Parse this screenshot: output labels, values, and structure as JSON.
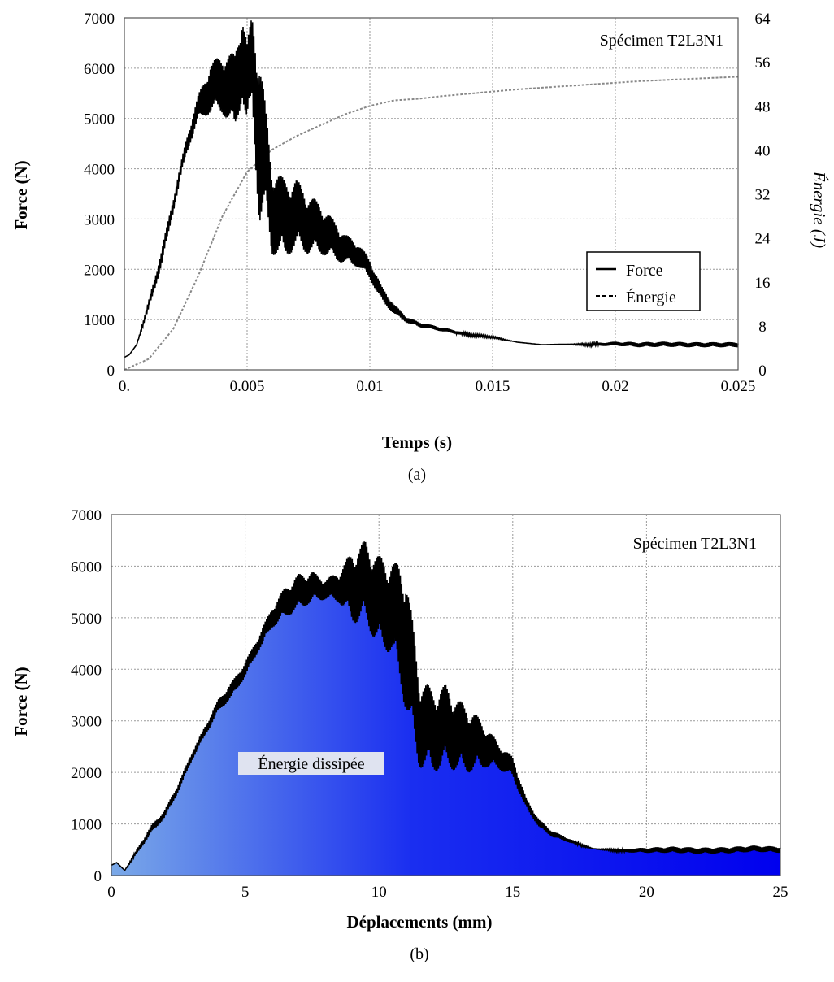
{
  "chart_data": [
    {
      "type": "line",
      "caption": "(a)",
      "annotation": "Spécimen T2L3N1",
      "xlabel": "Temps (s)",
      "ylabel": "Force (N)",
      "ylabel_right": "Énergie (J)",
      "xlim": [
        0,
        0.025
      ],
      "ylim": [
        0,
        7000
      ],
      "ylim_right": [
        0,
        64
      ],
      "grid": true,
      "legend_position": "lower-right",
      "x_ticks": [
        "0.",
        "0.005",
        "0.01",
        "0.015",
        "0.02",
        "0.025"
      ],
      "x_tick_values": [
        0,
        0.005,
        0.01,
        0.015,
        0.02,
        0.025
      ],
      "y_ticks": [
        "0",
        "1000",
        "2000",
        "3000",
        "4000",
        "5000",
        "6000",
        "7000"
      ],
      "y_tick_values": [
        0,
        1000,
        2000,
        3000,
        4000,
        5000,
        6000,
        7000
      ],
      "y_ticks_right": [
        "0",
        "8",
        "16",
        "24",
        "32",
        "40",
        "48",
        "56",
        "64"
      ],
      "y_tick_values_right": [
        0,
        8,
        16,
        24,
        32,
        40,
        48,
        56,
        64
      ],
      "series": [
        {
          "name": "Force",
          "axis": "left",
          "style": "solid",
          "color": "#000000",
          "x": [
            0,
            0.0002,
            0.0005,
            0.001,
            0.0015,
            0.002,
            0.0025,
            0.003,
            0.0035,
            0.004,
            0.0045,
            0.0048,
            0.005,
            0.0052,
            0.0055,
            0.0058,
            0.006,
            0.0065,
            0.007,
            0.0075,
            0.008,
            0.0085,
            0.009,
            0.0095,
            0.01,
            0.0105,
            0.011,
            0.0115,
            0.012,
            0.013,
            0.014,
            0.015,
            0.016,
            0.017,
            0.018,
            0.019,
            0.02,
            0.021,
            0.022,
            0.023,
            0.024,
            0.025
          ],
          "values": [
            250,
            300,
            500,
            1300,
            2200,
            3300,
            4400,
            5200,
            5600,
            5700,
            5500,
            6300,
            5600,
            6200,
            4600,
            4000,
            3200,
            3000,
            3100,
            2900,
            2800,
            2600,
            2400,
            2300,
            2000,
            1500,
            1200,
            1000,
            900,
            800,
            700,
            650,
            550,
            500,
            510,
            500,
            520,
            500,
            510,
            500,
            500,
            500
          ],
          "oscillation_amplitude": [
            0,
            0,
            0,
            100,
            150,
            150,
            150,
            250,
            500,
            600,
            800,
            900,
            900,
            900,
            1800,
            1000,
            900,
            800,
            700,
            600,
            500,
            400,
            300,
            250,
            200,
            150,
            100,
            60,
            50,
            40,
            30,
            20,
            0,
            0,
            0,
            30,
            40,
            50,
            50,
            50,
            50,
            50
          ]
        },
        {
          "name": "Énergie",
          "axis": "right",
          "style": "dashed",
          "color": "#888888",
          "x": [
            0,
            0.001,
            0.002,
            0.003,
            0.004,
            0.005,
            0.006,
            0.007,
            0.008,
            0.009,
            0.01,
            0.011,
            0.012,
            0.013,
            0.014,
            0.015,
            0.016,
            0.017,
            0.018,
            0.019,
            0.02,
            0.021,
            0.022,
            0.023,
            0.024,
            0.025
          ],
          "values": [
            0,
            2,
            7.5,
            17,
            28,
            36,
            40,
            42.5,
            44.5,
            46.5,
            48,
            49,
            49.3,
            49.8,
            50.2,
            50.6,
            51,
            51.3,
            51.6,
            51.9,
            52.2,
            52.5,
            52.7,
            52.9,
            53.1,
            53.3
          ]
        }
      ]
    },
    {
      "type": "area",
      "caption": "(b)",
      "annotation": "Spécimen T2L3N1",
      "area_label": "Énergie dissipée",
      "xlabel": "Déplacements (mm)",
      "ylabel": "Force (N)",
      "xlim": [
        0,
        25
      ],
      "ylim": [
        0,
        7000
      ],
      "grid": true,
      "fill_gradient": [
        "#7aa9e8",
        "#1a2ef0",
        "#0000ee"
      ],
      "x_ticks": [
        "0",
        "5",
        "10",
        "15",
        "20",
        "25"
      ],
      "x_tick_values": [
        0,
        5,
        10,
        15,
        20,
        25
      ],
      "y_ticks": [
        "0",
        "1000",
        "2000",
        "3000",
        "4000",
        "5000",
        "6000",
        "7000"
      ],
      "y_tick_values": [
        0,
        1000,
        2000,
        3000,
        4000,
        5000,
        6000,
        7000
      ],
      "series": [
        {
          "name": "Force",
          "color": "#000000",
          "x": [
            0,
            0.2,
            0.5,
            1,
            1.5,
            2,
            2.5,
            3,
            3.5,
            4,
            4.5,
            5,
            5.5,
            6,
            6.5,
            7,
            7.5,
            8,
            8.5,
            9,
            9.5,
            10,
            10.5,
            11,
            11.5,
            12,
            12.5,
            13,
            13.5,
            14,
            14.5,
            15,
            15.5,
            16,
            16.5,
            17,
            17.5,
            18,
            19,
            20,
            21,
            22,
            23,
            24,
            25
          ],
          "values": [
            200,
            250,
            100,
            500,
            900,
            1200,
            1700,
            2300,
            2800,
            3300,
            3600,
            4000,
            4500,
            5000,
            5300,
            5500,
            5600,
            5550,
            5600,
            5600,
            5700,
            5300,
            5200,
            4600,
            3000,
            2800,
            2900,
            2700,
            2600,
            2500,
            2300,
            2100,
            1400,
            1000,
            800,
            700,
            600,
            520,
            480,
            490,
            500,
            480,
            490,
            520,
            500
          ],
          "oscillation_amplitude": [
            0,
            0,
            0,
            50,
            80,
            80,
            80,
            80,
            100,
            120,
            150,
            150,
            150,
            200,
            300,
            350,
            300,
            200,
            300,
            700,
            800,
            900,
            900,
            1400,
            900,
            800,
            800,
            700,
            600,
            400,
            250,
            200,
            100,
            80,
            60,
            40,
            30,
            0,
            30,
            50,
            60,
            60,
            60,
            60,
            60
          ]
        }
      ]
    }
  ]
}
